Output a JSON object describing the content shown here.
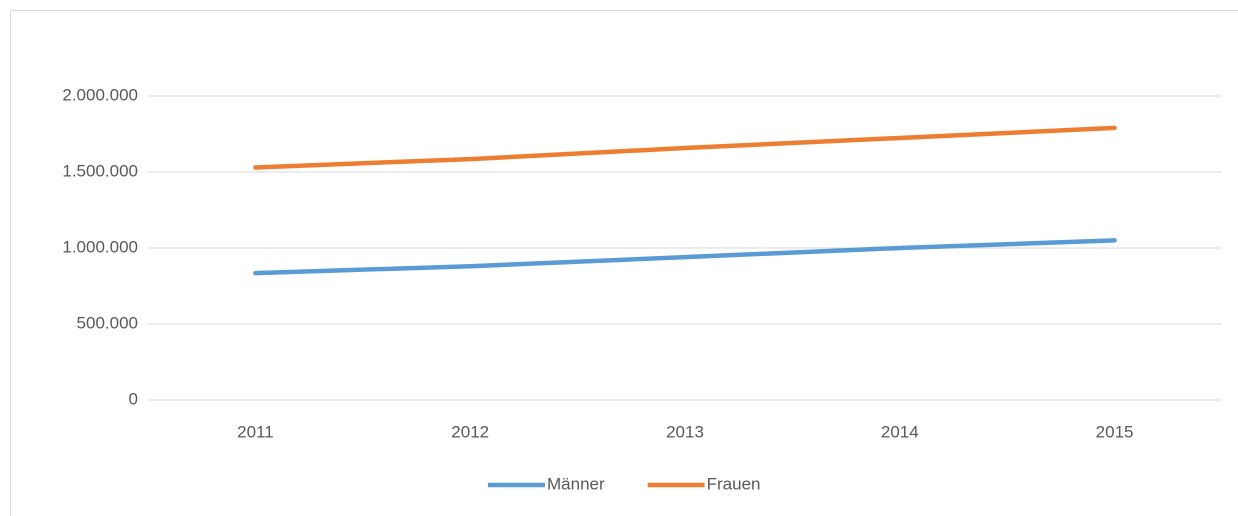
{
  "chart_data": {
    "type": "line",
    "categories": [
      "2011",
      "2012",
      "2013",
      "2014",
      "2015"
    ],
    "series": [
      {
        "name": "Männer",
        "color": "#5b9bd5",
        "values": [
          835000,
          880000,
          940000,
          1000000,
          1050000
        ]
      },
      {
        "name": "Frauen",
        "color": "#ed7d31",
        "values": [
          1530000,
          1585000,
          1658000,
          1724000,
          1790000
        ]
      }
    ],
    "ylim": [
      0,
      2000000
    ],
    "yticks": [
      0,
      {
        "value": 500000,
        "label": "500.000"
      },
      {
        "value": 1000000,
        "label": "1.000.000"
      },
      {
        "value": 1500000,
        "label": "1.500.000"
      },
      {
        "value": 2000000,
        "label": "2.000.000"
      }
    ],
    "grid": true,
    "legend": "bottom"
  }
}
